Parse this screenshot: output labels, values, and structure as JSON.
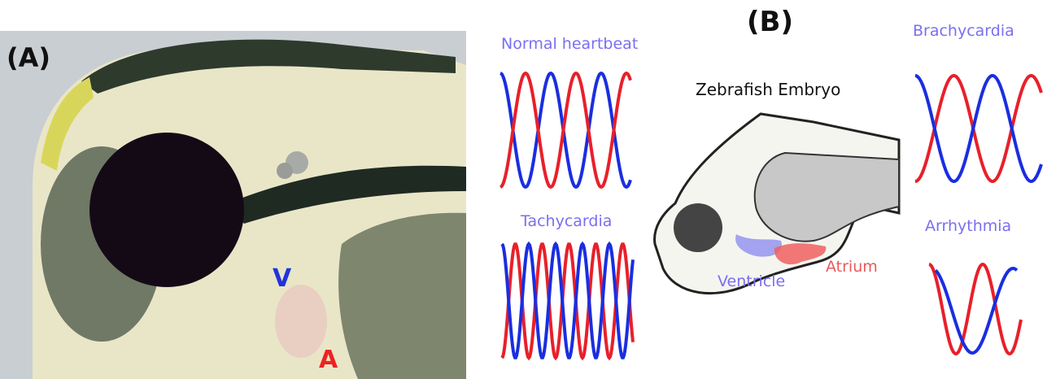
{
  "panel_a": {
    "label": "(A)",
    "ventricle_marker": "V",
    "atrium_marker": "A"
  },
  "panel_b": {
    "label": "(B)",
    "normal": "Normal heartbeat",
    "tachycardia": "Tachycardia",
    "brachycardia": "Brachycardia",
    "arrhythmia": "Arrhythmia",
    "embryo": {
      "title": "Zebrafish Embryo",
      "ventricle": "Ventricle",
      "atrium": "Atrium"
    }
  }
}
